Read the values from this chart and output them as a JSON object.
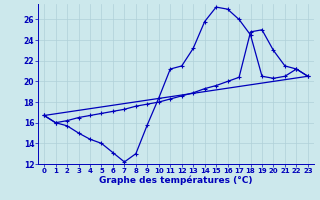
{
  "bg_color": "#cce8ec",
  "grid_color": "#b0d0d8",
  "line_color": "#0000bb",
  "xlabel": "Graphe des températures (°C)",
  "xmin": -0.5,
  "xmax": 23.5,
  "ymin": 12,
  "ymax": 27.5,
  "yticks": [
    12,
    14,
    16,
    18,
    20,
    22,
    24,
    26
  ],
  "xticks": [
    0,
    1,
    2,
    3,
    4,
    5,
    6,
    7,
    8,
    9,
    10,
    11,
    12,
    13,
    14,
    15,
    16,
    17,
    18,
    19,
    20,
    21,
    22,
    23
  ],
  "curve1_x": [
    0,
    1,
    2,
    3,
    4,
    5,
    6,
    7,
    8,
    9,
    10,
    11,
    12,
    13,
    14,
    15,
    16,
    17,
    18,
    19,
    20,
    21,
    22,
    23
  ],
  "curve1_y": [
    16.7,
    16.0,
    15.7,
    15.0,
    14.4,
    14.0,
    13.1,
    12.2,
    13.0,
    15.8,
    18.4,
    21.2,
    21.5,
    23.2,
    25.8,
    27.2,
    27.0,
    26.0,
    24.5,
    20.5,
    20.3,
    20.5,
    21.2,
    20.5
  ],
  "curve2_x": [
    0,
    1,
    2,
    3,
    4,
    5,
    6,
    7,
    8,
    9,
    10,
    11,
    12,
    13,
    14,
    15,
    16,
    17,
    18,
    19,
    20,
    21,
    22,
    23
  ],
  "curve2_y": [
    16.7,
    16.0,
    16.2,
    16.5,
    16.7,
    16.9,
    17.1,
    17.3,
    17.6,
    17.8,
    18.0,
    18.3,
    18.6,
    18.9,
    19.3,
    19.6,
    20.0,
    20.4,
    24.8,
    25.0,
    23.0,
    21.5,
    21.2,
    20.5
  ],
  "line3_x": [
    0,
    23
  ],
  "line3_y": [
    16.7,
    20.5
  ]
}
